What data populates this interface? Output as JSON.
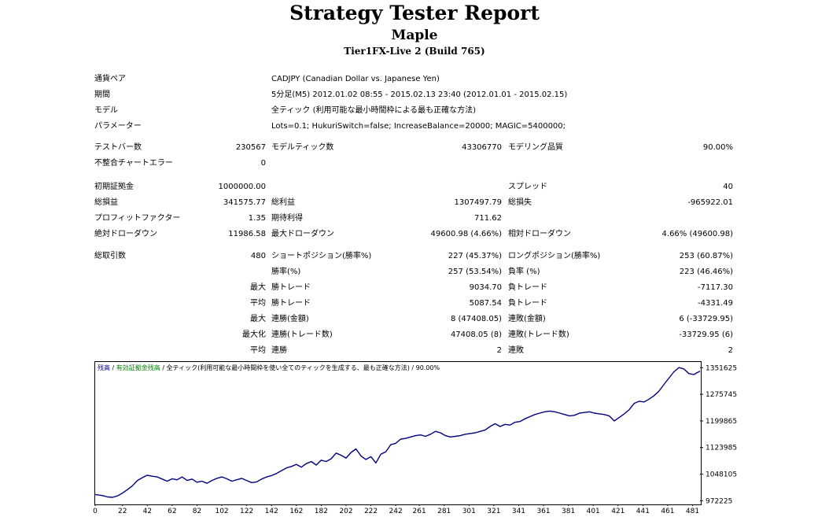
{
  "header": {
    "title": "Strategy Tester Report",
    "ea_name": "Maple",
    "server": "Tier1FX-Live 2 (Build 765)"
  },
  "settings": [
    {
      "label": "通貨ペア",
      "value": "CADJPY (Canadian Dollar vs. Japanese Yen)"
    },
    {
      "label": "期間",
      "value": "5分足(M5) 2012.01.02 08:55 - 2015.02.13 23:40 (2012.01.01 - 2015.02.15)"
    },
    {
      "label": "モデル",
      "value": "全ティック (利用可能な最小時間枠による最も正確な方法)"
    },
    {
      "label": "パラメーター",
      "value": "Lots=0.1; HukuriSwitch=false; IncreaseBalance=20000; MAGIC=5400000;"
    }
  ],
  "bars": {
    "bars_label": "テストバー数",
    "bars_value": "230567",
    "ticks_label": "モデルティック数",
    "ticks_value": "43306770",
    "quality_label": "モデリング品質",
    "quality_value": "90.00%",
    "errors_label": "不整合チャートエラー",
    "errors_value": "0"
  },
  "results": {
    "deposit_label": "初期証拠金",
    "deposit_value": "1000000.00",
    "spread_label": "スプレッド",
    "spread_value": "40",
    "net_label": "総損益",
    "net_value": "341575.77",
    "gross_profit_label": "総利益",
    "gross_profit_value": "1307497.79",
    "gross_loss_label": "総損失",
    "gross_loss_value": "-965922.01",
    "pf_label": "プロフィットファクター",
    "pf_value": "1.35",
    "payoff_label": "期待利得",
    "payoff_value": "711.62",
    "abs_dd_label": "絶対ドローダウン",
    "abs_dd_value": "11986.58",
    "max_dd_label": "最大ドローダウン",
    "max_dd_value": "49600.98 (4.66%)",
    "rel_dd_label": "相対ドローダウン",
    "rel_dd_value": "4.66% (49600.98)"
  },
  "trades": {
    "total_label": "総取引数",
    "total_value": "480",
    "short_label": "ショートポジション(勝率%)",
    "short_value": "227 (45.37%)",
    "long_label": "ロングポジション(勝率%)",
    "long_value": "253 (60.87%)",
    "win_label": "勝率(%)",
    "win_value": "257 (53.54%)",
    "loss_label": "負率 (%)",
    "loss_value": "223 (46.46%)",
    "max_label": "最大",
    "avg_label": "平均",
    "maxize_label": "最大化",
    "win_trade_label": "勝トレード",
    "loss_trade_label": "負トレード",
    "max_win_value": "9034.70",
    "max_loss_value": "-7117.30",
    "avg_win_value": "5087.54",
    "avg_loss_value": "-4331.49",
    "cons_win_money_label": "連勝(金額)",
    "cons_win_money_value": "8 (47408.05)",
    "cons_loss_money_label": "連敗(金額)",
    "cons_loss_money_value": "6 (-33729.95)",
    "cons_win_count_label": "連勝(トレード数)",
    "cons_win_count_value": "47408.05 (8)",
    "cons_loss_count_label": "連敗(トレード数)",
    "cons_loss_count_value": "-33729.95 (6)",
    "avg_cons_win_label": "連勝",
    "avg_cons_win_value": "2",
    "avg_cons_loss_label": "連敗",
    "avg_cons_loss_value": "2"
  },
  "chart_legend": {
    "balance": "残高",
    "sep1": " / ",
    "equity": "有効証拠金残高",
    "sep2": " / ",
    "rest": "全ティック(利用可能な最小時間枠を使い全てのティックを生成する、最も正確な方法) / 90.00%"
  },
  "chart_data": {
    "type": "line",
    "title": "",
    "xlabel": "",
    "ylabel": "",
    "x_ticks": [
      0,
      22,
      42,
      62,
      82,
      102,
      122,
      142,
      162,
      182,
      202,
      222,
      242,
      261,
      281,
      301,
      321,
      341,
      361,
      381,
      401,
      421,
      441,
      461,
      481
    ],
    "y_ticks": [
      972225,
      1048105,
      1123985,
      1199865,
      1275745,
      1351625
    ],
    "xlim": [
      0,
      487
    ],
    "ylim": [
      964000,
      1368000
    ],
    "series": [
      {
        "color": "#000080",
        "x": [
          0,
          6,
          10,
          14,
          18,
          22,
          26,
          30,
          34,
          38,
          42,
          46,
          50,
          54,
          58,
          62,
          66,
          70,
          74,
          78,
          82,
          86,
          90,
          94,
          98,
          102,
          106,
          110,
          114,
          118,
          122,
          126,
          130,
          134,
          138,
          142,
          146,
          150,
          154,
          158,
          162,
          166,
          170,
          174,
          178,
          182,
          186,
          190,
          194,
          198,
          202,
          206,
          210,
          214,
          218,
          222,
          226,
          230,
          234,
          238,
          242,
          246,
          250,
          254,
          258,
          262,
          266,
          270,
          274,
          278,
          282,
          286,
          290,
          294,
          298,
          302,
          306,
          310,
          314,
          318,
          322,
          326,
          330,
          334,
          338,
          342,
          346,
          350,
          354,
          358,
          362,
          366,
          370,
          374,
          378,
          382,
          386,
          390,
          394,
          398,
          402,
          406,
          410,
          414,
          418,
          422,
          426,
          430,
          434,
          438,
          442,
          446,
          450,
          454,
          458,
          462,
          466,
          470,
          474,
          478,
          482,
          487
        ],
        "values": [
          990000,
          987000,
          983000,
          982000,
          986000,
          994000,
          1004000,
          1015000,
          1030000,
          1038000,
          1045000,
          1042000,
          1040000,
          1034000,
          1028000,
          1035000,
          1032000,
          1040000,
          1030000,
          1034000,
          1025000,
          1028000,
          1022000,
          1030000,
          1036000,
          1040000,
          1035000,
          1028000,
          1032000,
          1036000,
          1030000,
          1024000,
          1026000,
          1034000,
          1040000,
          1044000,
          1050000,
          1058000,
          1066000,
          1070000,
          1076000,
          1068000,
          1078000,
          1084000,
          1074000,
          1088000,
          1084000,
          1092000,
          1108000,
          1102000,
          1094000,
          1110000,
          1120000,
          1100000,
          1090000,
          1098000,
          1080000,
          1105000,
          1112000,
          1132000,
          1136000,
          1148000,
          1150000,
          1154000,
          1158000,
          1160000,
          1156000,
          1162000,
          1170000,
          1166000,
          1158000,
          1154000,
          1156000,
          1158000,
          1162000,
          1164000,
          1166000,
          1170000,
          1174000,
          1184000,
          1192000,
          1184000,
          1190000,
          1188000,
          1196000,
          1198000,
          1206000,
          1212000,
          1218000,
          1222000,
          1226000,
          1228000,
          1226000,
          1222000,
          1218000,
          1214000,
          1216000,
          1222000,
          1224000,
          1226000,
          1222000,
          1220000,
          1218000,
          1214000,
          1200000,
          1210000,
          1220000,
          1232000,
          1250000,
          1256000,
          1254000,
          1262000,
          1272000,
          1285000,
          1304000,
          1322000,
          1340000,
          1352000,
          1348000,
          1335000,
          1332000,
          1342000
        ]
      }
    ]
  }
}
